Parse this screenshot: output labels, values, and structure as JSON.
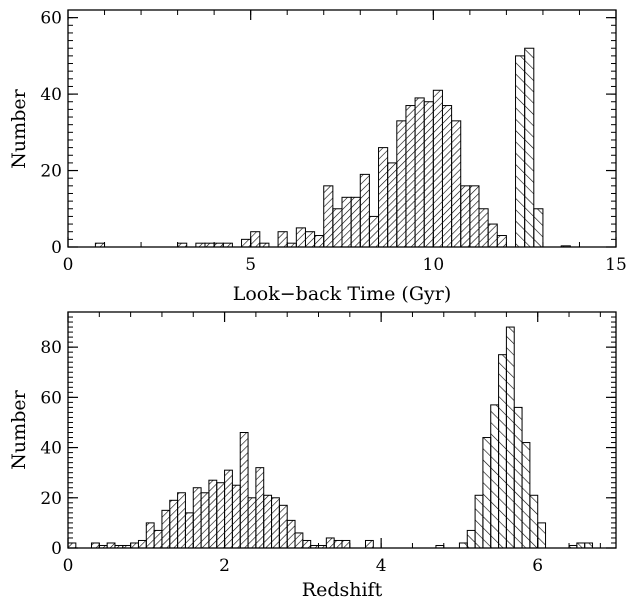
{
  "chart_data": [
    {
      "type": "bar",
      "histogram": true,
      "xlabel": "Look−back Time (Gyr)",
      "ylabel": "Number",
      "xlim": [
        0,
        15
      ],
      "ylim": [
        0,
        62
      ],
      "xticks": [
        0,
        5,
        10,
        15
      ],
      "yticks": [
        0,
        20,
        40,
        60
      ],
      "bin_width": 0.25,
      "series": [
        {
          "hatch": "forward",
          "bins": [
            [
              0.75,
              1
            ],
            [
              3.0,
              1
            ],
            [
              3.5,
              1
            ],
            [
              3.75,
              1
            ],
            [
              4.0,
              1
            ],
            [
              4.25,
              1
            ],
            [
              4.75,
              2
            ],
            [
              5.0,
              4
            ],
            [
              5.25,
              1
            ],
            [
              5.75,
              4
            ],
            [
              6.0,
              1
            ],
            [
              6.25,
              5
            ],
            [
              6.5,
              4
            ],
            [
              6.75,
              3
            ],
            [
              7.0,
              16
            ],
            [
              7.25,
              10
            ],
            [
              7.5,
              13
            ],
            [
              7.75,
              13
            ],
            [
              8.0,
              19
            ],
            [
              8.25,
              8
            ],
            [
              8.5,
              26
            ],
            [
              8.75,
              22
            ],
            [
              9.0,
              33
            ],
            [
              9.25,
              37
            ],
            [
              9.5,
              39
            ],
            [
              9.75,
              38
            ],
            [
              10.0,
              41
            ],
            [
              10.25,
              37
            ],
            [
              10.5,
              33
            ],
            [
              10.75,
              16
            ],
            [
              11.0,
              16
            ],
            [
              11.25,
              10
            ],
            [
              11.5,
              6
            ],
            [
              11.75,
              3
            ]
          ]
        },
        {
          "hatch": "backward",
          "bins": [
            [
              12.25,
              50
            ],
            [
              12.5,
              52
            ],
            [
              12.75,
              10
            ],
            [
              13.5,
              0.3
            ]
          ]
        }
      ]
    },
    {
      "type": "bar",
      "histogram": true,
      "xlabel": "Redshift",
      "ylabel": "Number",
      "xlim": [
        0,
        7
      ],
      "ylim": [
        0,
        94
      ],
      "xticks": [
        0,
        2,
        4,
        6
      ],
      "yticks": [
        0,
        20,
        40,
        60,
        80
      ],
      "bin_width": 0.1,
      "series": [
        {
          "hatch": "forward",
          "bins": [
            [
              0.0,
              2
            ],
            [
              0.3,
              2
            ],
            [
              0.4,
              1
            ],
            [
              0.5,
              2
            ],
            [
              0.6,
              1
            ],
            [
              0.7,
              1
            ],
            [
              0.8,
              2
            ],
            [
              0.9,
              3
            ],
            [
              1.0,
              10
            ],
            [
              1.1,
              7
            ],
            [
              1.2,
              15
            ],
            [
              1.3,
              19
            ],
            [
              1.4,
              22
            ],
            [
              1.5,
              14
            ],
            [
              1.6,
              24
            ],
            [
              1.7,
              22
            ],
            [
              1.8,
              27
            ],
            [
              1.9,
              26
            ],
            [
              2.0,
              31
            ],
            [
              2.1,
              25
            ],
            [
              2.2,
              46
            ],
            [
              2.3,
              20
            ],
            [
              2.4,
              32
            ],
            [
              2.5,
              21
            ],
            [
              2.6,
              20
            ],
            [
              2.7,
              17
            ],
            [
              2.8,
              11
            ],
            [
              2.9,
              6
            ],
            [
              3.0,
              3
            ],
            [
              3.1,
              1
            ],
            [
              3.2,
              1
            ],
            [
              3.3,
              4
            ],
            [
              3.4,
              3
            ],
            [
              3.5,
              3
            ],
            [
              3.8,
              3
            ]
          ]
        },
        {
          "hatch": "backward",
          "bins": [
            [
              4.7,
              1
            ],
            [
              5.0,
              2
            ],
            [
              5.1,
              7
            ],
            [
              5.2,
              21
            ],
            [
              5.3,
              44
            ],
            [
              5.4,
              57
            ],
            [
              5.5,
              77
            ],
            [
              5.6,
              88
            ],
            [
              5.7,
              56
            ],
            [
              5.8,
              42
            ],
            [
              5.9,
              21
            ],
            [
              6.0,
              10
            ],
            [
              6.4,
              1
            ],
            [
              6.5,
              2
            ],
            [
              6.6,
              2
            ]
          ]
        }
      ]
    }
  ]
}
